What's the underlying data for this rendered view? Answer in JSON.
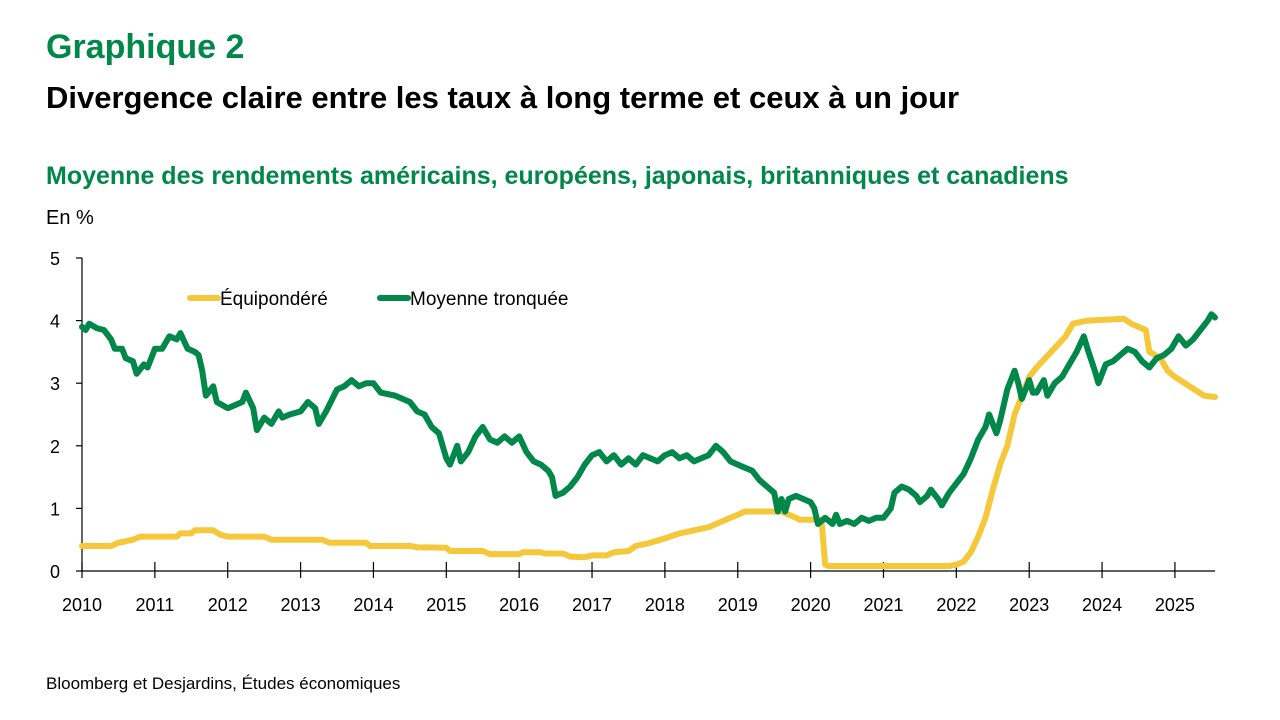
{
  "header": {
    "figure_number": "Graphique 2",
    "title": "Divergence claire entre les taux à long terme et ceux à un jour",
    "subtitle": "Moyenne des rendements américains, européens, japonais, britanniques et canadiens",
    "unit": "En %"
  },
  "footer": {
    "source": "Bloomberg et Desjardins, Études économiques"
  },
  "chart_data": {
    "type": "line",
    "title": "Moyenne des rendements américains, européens, japonais, britanniques et canadiens",
    "xlabel": "",
    "ylabel": "En %",
    "xlim": [
      2010,
      2025.55
    ],
    "ylim": [
      0,
      5
    ],
    "x_ticks": [
      "2010",
      "2011",
      "2012",
      "2013",
      "2014",
      "2015",
      "2016",
      "2017",
      "2018",
      "2019",
      "2020",
      "2021",
      "2022",
      "2023",
      "2024",
      "2025"
    ],
    "y_ticks": [
      "0",
      "1",
      "2",
      "3",
      "4",
      "5"
    ],
    "grid": false,
    "legend_position": "top-left",
    "series": [
      {
        "name": "Équipondéré",
        "color": "#f5c83c",
        "points": [
          [
            2010.0,
            0.4
          ],
          [
            2010.4,
            0.4
          ],
          [
            2010.5,
            0.45
          ],
          [
            2010.7,
            0.5
          ],
          [
            2010.8,
            0.55
          ],
          [
            2011.0,
            0.55
          ],
          [
            2011.3,
            0.55
          ],
          [
            2011.35,
            0.6
          ],
          [
            2011.5,
            0.6
          ],
          [
            2011.55,
            0.65
          ],
          [
            2011.8,
            0.65
          ],
          [
            2011.9,
            0.58
          ],
          [
            2012.0,
            0.55
          ],
          [
            2012.5,
            0.55
          ],
          [
            2012.6,
            0.5
          ],
          [
            2013.0,
            0.5
          ],
          [
            2013.3,
            0.5
          ],
          [
            2013.4,
            0.45
          ],
          [
            2013.9,
            0.45
          ],
          [
            2013.95,
            0.4
          ],
          [
            2014.5,
            0.4
          ],
          [
            2014.6,
            0.38
          ],
          [
            2015.0,
            0.37
          ],
          [
            2015.05,
            0.32
          ],
          [
            2015.5,
            0.32
          ],
          [
            2015.6,
            0.27
          ],
          [
            2016.0,
            0.27
          ],
          [
            2016.05,
            0.3
          ],
          [
            2016.3,
            0.3
          ],
          [
            2016.35,
            0.28
          ],
          [
            2016.6,
            0.28
          ],
          [
            2016.7,
            0.23
          ],
          [
            2016.9,
            0.22
          ],
          [
            2017.0,
            0.25
          ],
          [
            2017.2,
            0.25
          ],
          [
            2017.3,
            0.3
          ],
          [
            2017.5,
            0.32
          ],
          [
            2017.6,
            0.4
          ],
          [
            2017.8,
            0.45
          ],
          [
            2018.0,
            0.52
          ],
          [
            2018.2,
            0.6
          ],
          [
            2018.4,
            0.65
          ],
          [
            2018.6,
            0.7
          ],
          [
            2018.8,
            0.8
          ],
          [
            2019.0,
            0.9
          ],
          [
            2019.1,
            0.95
          ],
          [
            2019.6,
            0.95
          ],
          [
            2019.8,
            0.85
          ],
          [
            2019.85,
            0.82
          ],
          [
            2020.15,
            0.82
          ],
          [
            2020.2,
            0.1
          ],
          [
            2020.25,
            0.08
          ],
          [
            2021.9,
            0.08
          ],
          [
            2022.0,
            0.1
          ],
          [
            2022.1,
            0.15
          ],
          [
            2022.2,
            0.3
          ],
          [
            2022.3,
            0.55
          ],
          [
            2022.4,
            0.85
          ],
          [
            2022.5,
            1.3
          ],
          [
            2022.6,
            1.7
          ],
          [
            2022.7,
            2.0
          ],
          [
            2022.8,
            2.5
          ],
          [
            2022.9,
            2.8
          ],
          [
            2023.0,
            3.1
          ],
          [
            2023.1,
            3.25
          ],
          [
            2023.3,
            3.5
          ],
          [
            2023.5,
            3.75
          ],
          [
            2023.6,
            3.95
          ],
          [
            2023.8,
            4.0
          ],
          [
            2024.3,
            4.03
          ],
          [
            2024.4,
            3.95
          ],
          [
            2024.6,
            3.85
          ],
          [
            2024.65,
            3.5
          ],
          [
            2024.8,
            3.4
          ],
          [
            2024.9,
            3.2
          ],
          [
            2025.0,
            3.1
          ],
          [
            2025.2,
            2.95
          ],
          [
            2025.4,
            2.8
          ],
          [
            2025.55,
            2.78
          ]
        ]
      },
      {
        "name": "Moyenne tronquée",
        "color": "#00874a",
        "points": [
          [
            2010.0,
            3.9
          ],
          [
            2010.05,
            3.85
          ],
          [
            2010.1,
            3.95
          ],
          [
            2010.2,
            3.88
          ],
          [
            2010.3,
            3.85
          ],
          [
            2010.4,
            3.7
          ],
          [
            2010.45,
            3.55
          ],
          [
            2010.55,
            3.55
          ],
          [
            2010.6,
            3.4
          ],
          [
            2010.7,
            3.35
          ],
          [
            2010.75,
            3.15
          ],
          [
            2010.85,
            3.3
          ],
          [
            2010.9,
            3.25
          ],
          [
            2011.0,
            3.55
          ],
          [
            2011.1,
            3.55
          ],
          [
            2011.2,
            3.75
          ],
          [
            2011.3,
            3.7
          ],
          [
            2011.35,
            3.8
          ],
          [
            2011.45,
            3.55
          ],
          [
            2011.55,
            3.5
          ],
          [
            2011.6,
            3.45
          ],
          [
            2011.65,
            3.2
          ],
          [
            2011.7,
            2.8
          ],
          [
            2011.8,
            2.95
          ],
          [
            2011.85,
            2.7
          ],
          [
            2012.0,
            2.6
          ],
          [
            2012.1,
            2.65
          ],
          [
            2012.2,
            2.7
          ],
          [
            2012.25,
            2.85
          ],
          [
            2012.35,
            2.6
          ],
          [
            2012.4,
            2.25
          ],
          [
            2012.5,
            2.45
          ],
          [
            2012.6,
            2.35
          ],
          [
            2012.7,
            2.55
          ],
          [
            2012.75,
            2.45
          ],
          [
            2012.85,
            2.5
          ],
          [
            2013.0,
            2.55
          ],
          [
            2013.1,
            2.7
          ],
          [
            2013.2,
            2.6
          ],
          [
            2013.25,
            2.35
          ],
          [
            2013.35,
            2.55
          ],
          [
            2013.5,
            2.9
          ],
          [
            2013.6,
            2.95
          ],
          [
            2013.7,
            3.05
          ],
          [
            2013.8,
            2.95
          ],
          [
            2013.9,
            3.0
          ],
          [
            2014.0,
            3.0
          ],
          [
            2014.1,
            2.85
          ],
          [
            2014.3,
            2.8
          ],
          [
            2014.4,
            2.75
          ],
          [
            2014.5,
            2.7
          ],
          [
            2014.6,
            2.55
          ],
          [
            2014.7,
            2.5
          ],
          [
            2014.8,
            2.3
          ],
          [
            2014.9,
            2.2
          ],
          [
            2015.0,
            1.8
          ],
          [
            2015.05,
            1.7
          ],
          [
            2015.15,
            2.0
          ],
          [
            2015.2,
            1.75
          ],
          [
            2015.3,
            1.9
          ],
          [
            2015.4,
            2.15
          ],
          [
            2015.5,
            2.3
          ],
          [
            2015.6,
            2.1
          ],
          [
            2015.7,
            2.05
          ],
          [
            2015.8,
            2.15
          ],
          [
            2015.9,
            2.05
          ],
          [
            2016.0,
            2.15
          ],
          [
            2016.1,
            1.9
          ],
          [
            2016.2,
            1.75
          ],
          [
            2016.3,
            1.7
          ],
          [
            2016.4,
            1.6
          ],
          [
            2016.45,
            1.5
          ],
          [
            2016.5,
            1.2
          ],
          [
            2016.6,
            1.25
          ],
          [
            2016.7,
            1.35
          ],
          [
            2016.8,
            1.5
          ],
          [
            2016.9,
            1.7
          ],
          [
            2017.0,
            1.85
          ],
          [
            2017.1,
            1.9
          ],
          [
            2017.2,
            1.75
          ],
          [
            2017.3,
            1.85
          ],
          [
            2017.4,
            1.7
          ],
          [
            2017.5,
            1.8
          ],
          [
            2017.6,
            1.7
          ],
          [
            2017.7,
            1.85
          ],
          [
            2017.8,
            1.8
          ],
          [
            2017.9,
            1.75
          ],
          [
            2018.0,
            1.85
          ],
          [
            2018.1,
            1.9
          ],
          [
            2018.2,
            1.8
          ],
          [
            2018.3,
            1.85
          ],
          [
            2018.4,
            1.75
          ],
          [
            2018.5,
            1.8
          ],
          [
            2018.6,
            1.85
          ],
          [
            2018.7,
            2.0
          ],
          [
            2018.8,
            1.9
          ],
          [
            2018.9,
            1.75
          ],
          [
            2019.0,
            1.7
          ],
          [
            2019.1,
            1.65
          ],
          [
            2019.2,
            1.6
          ],
          [
            2019.3,
            1.45
          ],
          [
            2019.4,
            1.35
          ],
          [
            2019.5,
            1.25
          ],
          [
            2019.55,
            0.95
          ],
          [
            2019.6,
            1.15
          ],
          [
            2019.65,
            0.95
          ],
          [
            2019.7,
            1.15
          ],
          [
            2019.8,
            1.2
          ],
          [
            2019.9,
            1.15
          ],
          [
            2020.0,
            1.1
          ],
          [
            2020.05,
            1.0
          ],
          [
            2020.1,
            0.75
          ],
          [
            2020.2,
            0.85
          ],
          [
            2020.3,
            0.75
          ],
          [
            2020.35,
            0.9
          ],
          [
            2020.4,
            0.75
          ],
          [
            2020.5,
            0.8
          ],
          [
            2020.6,
            0.75
          ],
          [
            2020.7,
            0.85
          ],
          [
            2020.8,
            0.8
          ],
          [
            2020.9,
            0.85
          ],
          [
            2021.0,
            0.85
          ],
          [
            2021.1,
            1.0
          ],
          [
            2021.15,
            1.25
          ],
          [
            2021.25,
            1.35
          ],
          [
            2021.35,
            1.3
          ],
          [
            2021.45,
            1.2
          ],
          [
            2021.5,
            1.1
          ],
          [
            2021.6,
            1.2
          ],
          [
            2021.65,
            1.3
          ],
          [
            2021.75,
            1.15
          ],
          [
            2021.8,
            1.05
          ],
          [
            2021.9,
            1.25
          ],
          [
            2022.0,
            1.4
          ],
          [
            2022.1,
            1.55
          ],
          [
            2022.2,
            1.8
          ],
          [
            2022.3,
            2.1
          ],
          [
            2022.4,
            2.3
          ],
          [
            2022.45,
            2.5
          ],
          [
            2022.55,
            2.2
          ],
          [
            2022.6,
            2.4
          ],
          [
            2022.7,
            2.9
          ],
          [
            2022.8,
            3.2
          ],
          [
            2022.85,
            3.0
          ],
          [
            2022.9,
            2.75
          ],
          [
            2023.0,
            3.05
          ],
          [
            2023.05,
            2.85
          ],
          [
            2023.1,
            2.85
          ],
          [
            2023.2,
            3.05
          ],
          [
            2023.25,
            2.8
          ],
          [
            2023.35,
            3.0
          ],
          [
            2023.45,
            3.1
          ],
          [
            2023.55,
            3.3
          ],
          [
            2023.65,
            3.5
          ],
          [
            2023.75,
            3.75
          ],
          [
            2023.8,
            3.55
          ],
          [
            2023.9,
            3.2
          ],
          [
            2023.95,
            3.0
          ],
          [
            2024.05,
            3.3
          ],
          [
            2024.15,
            3.35
          ],
          [
            2024.25,
            3.45
          ],
          [
            2024.35,
            3.55
          ],
          [
            2024.45,
            3.5
          ],
          [
            2024.55,
            3.35
          ],
          [
            2024.65,
            3.25
          ],
          [
            2024.75,
            3.4
          ],
          [
            2024.85,
            3.45
          ],
          [
            2024.95,
            3.55
          ],
          [
            2025.05,
            3.75
          ],
          [
            2025.15,
            3.6
          ],
          [
            2025.25,
            3.7
          ],
          [
            2025.35,
            3.85
          ],
          [
            2025.45,
            4.0
          ],
          [
            2025.5,
            4.1
          ],
          [
            2025.55,
            4.05
          ]
        ]
      }
    ]
  }
}
